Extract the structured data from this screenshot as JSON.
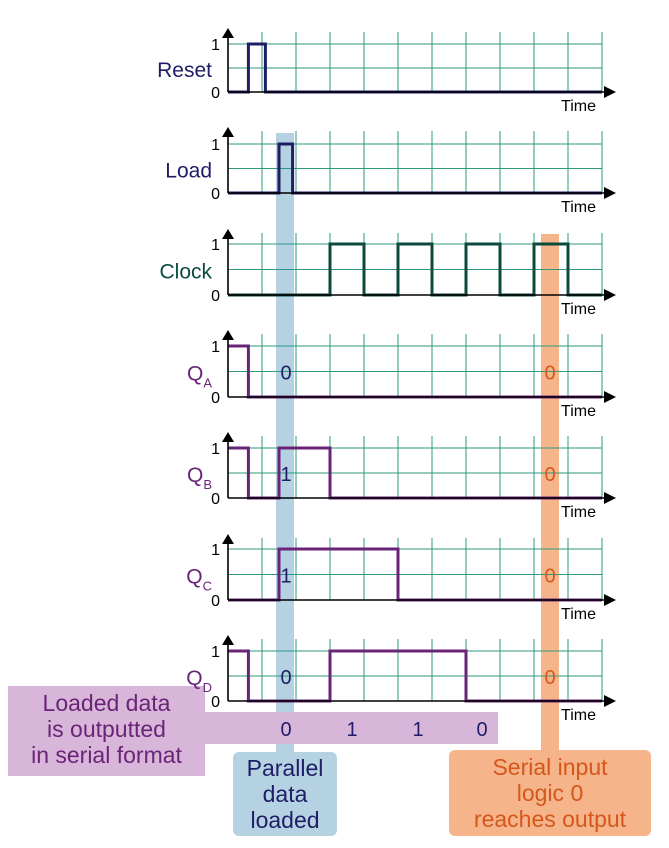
{
  "colors": {
    "grid": "#2e9a7e",
    "navy": "#1f1d66",
    "dark_green": "#0c4a3e",
    "purple": "#6a2477",
    "blue_band": "#b4d2e2",
    "orange_band": "#f6b48a",
    "orange_text": "#d4571b",
    "purple_box": "#d8b6d9"
  },
  "axis": {
    "high_tick": "1",
    "low_tick": "0",
    "time_label": "Time"
  },
  "signals": [
    {
      "id": "reset",
      "label": "Reset",
      "subscript": "",
      "color": "navy",
      "waveform": [
        [
          0,
          0
        ],
        [
          0.6,
          0
        ],
        [
          0.6,
          1
        ],
        [
          1.1,
          1
        ],
        [
          1.1,
          0
        ],
        [
          11,
          0
        ]
      ]
    },
    {
      "id": "load",
      "label": "Load",
      "subscript": "",
      "color": "navy",
      "waveform": [
        [
          0,
          0
        ],
        [
          1.5,
          0
        ],
        [
          1.5,
          1
        ],
        [
          1.9,
          1
        ],
        [
          1.9,
          0
        ],
        [
          11,
          0
        ]
      ]
    },
    {
      "id": "clock",
      "label": "Clock",
      "subscript": "",
      "color": "dark_green",
      "waveform": [
        [
          0,
          0
        ],
        [
          3,
          0
        ],
        [
          3,
          1
        ],
        [
          4,
          1
        ],
        [
          4,
          0
        ],
        [
          5,
          0
        ],
        [
          5,
          1
        ],
        [
          6,
          1
        ],
        [
          6,
          0
        ],
        [
          7,
          0
        ],
        [
          7,
          1
        ],
        [
          8,
          1
        ],
        [
          8,
          0
        ],
        [
          9,
          0
        ],
        [
          9,
          1
        ],
        [
          10,
          1
        ],
        [
          10,
          0
        ],
        [
          11,
          0
        ]
      ]
    },
    {
      "id": "qa",
      "label": "Q",
      "subscript": "A",
      "color": "purple",
      "waveform": [
        [
          0,
          1
        ],
        [
          0.6,
          1
        ],
        [
          0.6,
          0
        ],
        [
          11,
          0
        ]
      ],
      "bit_left": "0",
      "bit_right": "0"
    },
    {
      "id": "qb",
      "label": "Q",
      "subscript": "B",
      "color": "purple",
      "waveform": [
        [
          0,
          1
        ],
        [
          0.6,
          1
        ],
        [
          0.6,
          0
        ],
        [
          1.5,
          0
        ],
        [
          1.5,
          1
        ],
        [
          3,
          1
        ],
        [
          3,
          0
        ],
        [
          11,
          0
        ]
      ],
      "bit_left": "1",
      "bit_right": "0"
    },
    {
      "id": "qc",
      "label": "Q",
      "subscript": "C",
      "color": "purple",
      "waveform": [
        [
          0,
          0
        ],
        [
          1.5,
          0
        ],
        [
          1.5,
          1
        ],
        [
          5,
          1
        ],
        [
          5,
          0
        ],
        [
          11,
          0
        ]
      ],
      "bit_left": "1",
      "bit_right": "0"
    },
    {
      "id": "qd",
      "label": "Q",
      "subscript": "D",
      "color": "purple",
      "waveform": [
        [
          0,
          1
        ],
        [
          0.6,
          1
        ],
        [
          0.6,
          0
        ],
        [
          3,
          0
        ],
        [
          3,
          1
        ],
        [
          7,
          1
        ],
        [
          7,
          0
        ],
        [
          11,
          0
        ]
      ],
      "bit_left": "0",
      "bit_right": "0"
    }
  ],
  "serial_output_bits": [
    "0",
    "1",
    "1",
    "0"
  ],
  "callouts": {
    "serial": "Loaded data is outputted in serial format",
    "serial_lines": [
      "Loaded data",
      "is outputted",
      "in serial format"
    ],
    "parallel_lines": [
      "Parallel",
      "data",
      "loaded"
    ],
    "serial_input_lines": [
      "Serial input",
      "logic 0",
      "reaches output"
    ]
  }
}
